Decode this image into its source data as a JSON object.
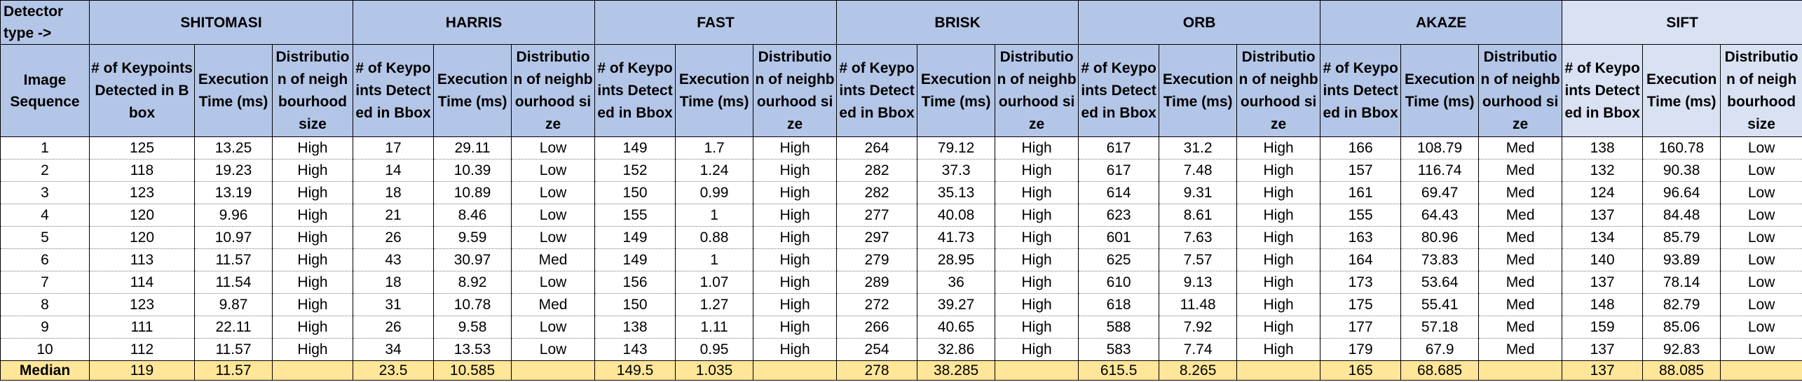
{
  "table": {
    "corner_top": "Detector type ->",
    "corner_bottom": "Image Sequence",
    "detectors": [
      {
        "name": "SHITOMASI",
        "columns": [
          "# of Keypoints Detected in Bbox",
          "Execution Time (ms)",
          "Distribution of neighbourhood size"
        ]
      },
      {
        "name": "HARRIS",
        "columns": [
          "# of Keypoints Detected in Bbox",
          "Execution Time (ms)",
          "Distribution of neighbourhood size"
        ]
      },
      {
        "name": "FAST",
        "columns": [
          "# of Keypoints Detected in Bbox",
          "Execution Time (ms)",
          "Distribution of neighbourhood size"
        ]
      },
      {
        "name": "BRISK",
        "columns": [
          "# of Keypoints Detected in Bbox",
          "Execution Time (ms)",
          "Distribution of neighbourhood size"
        ]
      },
      {
        "name": "ORB",
        "columns": [
          "# of Keypoints Detected in Bbox",
          "Execution Time (ms)",
          "Distribution of neighbourhood size"
        ]
      },
      {
        "name": "AKAZE",
        "columns": [
          "# of Keypoints Detected in Bbox",
          "Execution Time (ms)",
          "Distribution of neighbourhood size"
        ]
      },
      {
        "name": "SIFT",
        "columns": [
          "# of Keypoints Detected in Bbox",
          "Execution Time (ms)",
          "Distribution of neighbourhood size"
        ]
      }
    ],
    "rows": [
      [
        1,
        125,
        13.25,
        "High",
        17,
        29.11,
        "Low",
        149,
        1.7,
        "High",
        264,
        79.12,
        "High",
        617,
        31.2,
        "High",
        166,
        108.79,
        "Med",
        138,
        160.78,
        "Low"
      ],
      [
        2,
        118,
        19.23,
        "High",
        14,
        10.39,
        "Low",
        152,
        1.24,
        "High",
        282,
        37.3,
        "High",
        617,
        7.48,
        "High",
        157,
        116.74,
        "Med",
        132,
        90.38,
        "Low"
      ],
      [
        3,
        123,
        13.19,
        "High",
        18,
        10.89,
        "Low",
        150,
        0.99,
        "High",
        282,
        35.13,
        "High",
        614,
        9.31,
        "High",
        161,
        69.47,
        "Med",
        124,
        96.64,
        "Low"
      ],
      [
        4,
        120,
        9.96,
        "High",
        21,
        8.46,
        "Low",
        155,
        1,
        "High",
        277,
        40.08,
        "High",
        623,
        8.61,
        "High",
        155,
        64.43,
        "Med",
        137,
        84.48,
        "Low"
      ],
      [
        5,
        120,
        10.97,
        "High",
        26,
        9.59,
        "Low",
        149,
        0.88,
        "High",
        297,
        41.73,
        "High",
        601,
        7.63,
        "High",
        163,
        80.96,
        "Med",
        134,
        85.79,
        "Low"
      ],
      [
        6,
        113,
        11.57,
        "High",
        43,
        30.97,
        "Med",
        149,
        1,
        "High",
        279,
        28.95,
        "High",
        625,
        7.57,
        "High",
        164,
        73.83,
        "Med",
        140,
        93.89,
        "Low"
      ],
      [
        7,
        114,
        11.54,
        "High",
        18,
        8.92,
        "Low",
        156,
        1.07,
        "High",
        289,
        36,
        "High",
        610,
        9.13,
        "High",
        173,
        53.64,
        "Med",
        137,
        78.14,
        "Low"
      ],
      [
        8,
        123,
        9.87,
        "High",
        31,
        10.78,
        "Med",
        150,
        1.27,
        "High",
        272,
        39.27,
        "High",
        618,
        11.48,
        "High",
        175,
        55.41,
        "Med",
        148,
        82.79,
        "Low"
      ],
      [
        9,
        111,
        22.11,
        "High",
        26,
        9.58,
        "Low",
        138,
        1.11,
        "High",
        266,
        40.65,
        "High",
        588,
        7.92,
        "High",
        177,
        57.18,
        "Med",
        159,
        85.06,
        "Low"
      ],
      [
        10,
        112,
        11.57,
        "High",
        34,
        13.53,
        "Low",
        143,
        0.95,
        "High",
        254,
        32.86,
        "High",
        583,
        7.74,
        "High",
        179,
        67.9,
        "Med",
        137,
        92.83,
        "Low"
      ]
    ],
    "median": {
      "label": "Median",
      "values": [
        119,
        11.57,
        23.5,
        10.585,
        149.5,
        1.035,
        278,
        38.285,
        615.5,
        8.265,
        165,
        68.685,
        137,
        88.085
      ]
    }
  }
}
